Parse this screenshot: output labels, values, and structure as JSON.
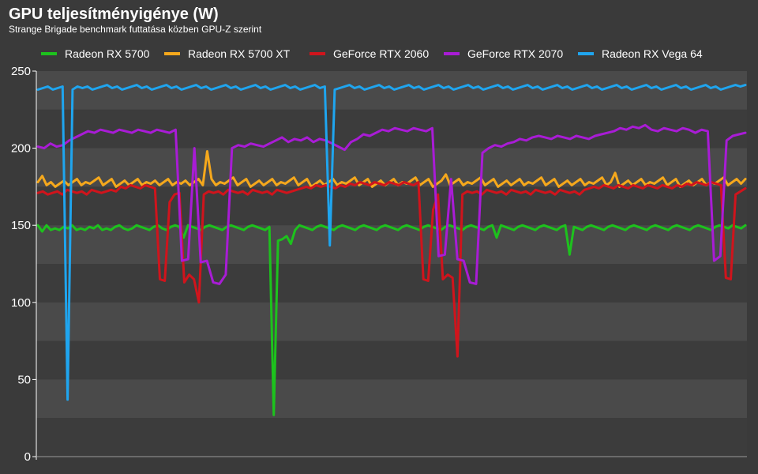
{
  "chart_data": {
    "type": "line",
    "title": "GPU teljesítményigénye (W)",
    "subtitle": "Strange Brigade benchmark futtatása közben GPU-Z szerint",
    "xlabel": "",
    "ylabel": "",
    "ylim": [
      0,
      250
    ],
    "yticks": [
      0,
      50,
      100,
      150,
      200,
      250
    ],
    "grid": true,
    "legend_position": "top",
    "colors": {
      "background": "#3a3a3a",
      "band_light": "#4a4a4a",
      "band_dark": "#3c3c3c",
      "axis": "#ffffff"
    },
    "series": [
      {
        "name": "Radeon RX 5700",
        "color": "#1dc21d",
        "values": [
          150,
          146,
          150,
          147,
          148,
          147,
          149,
          148,
          150,
          147,
          148,
          147,
          149,
          148,
          150,
          147,
          148,
          147,
          149,
          150,
          148,
          147,
          148,
          150,
          149,
          148,
          147,
          149,
          150,
          148,
          147,
          149,
          150,
          149,
          142,
          150,
          149,
          148,
          147,
          149,
          150,
          149,
          148,
          147,
          149,
          150,
          149,
          148,
          147,
          149,
          150,
          149,
          148,
          147,
          149,
          27,
          140,
          141,
          143,
          138,
          147,
          150,
          149,
          148,
          147,
          149,
          150,
          149,
          148,
          147,
          149,
          150,
          149,
          148,
          147,
          149,
          150,
          149,
          148,
          147,
          149,
          150,
          149,
          148,
          147,
          149,
          150,
          149,
          148,
          147,
          149,
          150,
          149,
          148,
          147,
          149,
          150,
          149,
          148,
          147,
          149,
          150,
          149,
          148,
          147,
          149,
          150,
          142,
          150,
          149,
          148,
          147,
          149,
          150,
          149,
          148,
          147,
          149,
          150,
          149,
          148,
          147,
          149,
          150,
          131,
          149,
          148,
          147,
          149,
          150,
          149,
          148,
          147,
          149,
          150,
          149,
          148,
          147,
          149,
          150,
          149,
          148,
          147,
          149,
          150,
          149,
          148,
          147,
          149,
          150,
          149,
          148,
          147,
          149,
          150,
          149,
          148,
          147,
          149,
          150,
          149,
          148,
          150,
          149,
          148,
          150
        ]
      },
      {
        "name": "Radeon RX 5700 XT",
        "color": "#f5a81c",
        "values": [
          178,
          182,
          176,
          178,
          175,
          177,
          179,
          176,
          178,
          180,
          176,
          178,
          177,
          179,
          181,
          176,
          178,
          180,
          175,
          177,
          179,
          176,
          178,
          180,
          176,
          178,
          177,
          179,
          176,
          178,
          180,
          176,
          178,
          177,
          179,
          176,
          178,
          180,
          176,
          198,
          180,
          176,
          178,
          177,
          179,
          181,
          176,
          178,
          180,
          175,
          177,
          179,
          176,
          178,
          180,
          176,
          178,
          177,
          179,
          181,
          176,
          178,
          180,
          175,
          177,
          179,
          176,
          178,
          180,
          176,
          178,
          177,
          179,
          181,
          176,
          178,
          180,
          175,
          177,
          179,
          176,
          178,
          180,
          176,
          178,
          177,
          179,
          181,
          176,
          178,
          180,
          175,
          177,
          179,
          183,
          176,
          178,
          180,
          176,
          178,
          177,
          179,
          181,
          176,
          178,
          180,
          175,
          177,
          179,
          176,
          178,
          180,
          176,
          178,
          177,
          179,
          181,
          176,
          178,
          180,
          175,
          177,
          179,
          176,
          178,
          180,
          176,
          178,
          177,
          179,
          181,
          176,
          178,
          184,
          175,
          177,
          179,
          176,
          178,
          180,
          176,
          178,
          177,
          179,
          181,
          176,
          178,
          180,
          175,
          177,
          179,
          176,
          178,
          180,
          176,
          178,
          177,
          179,
          181,
          176,
          178,
          180,
          177,
          180
        ]
      },
      {
        "name": "GeForce RTX 2060",
        "color": "#d0141c",
        "values": [
          171,
          172,
          170,
          171,
          172,
          170,
          173,
          172,
          171,
          172,
          170,
          173,
          172,
          171,
          172,
          173,
          172,
          175,
          174,
          176,
          175,
          174,
          176,
          175,
          174,
          115,
          114,
          165,
          170,
          171,
          113,
          118,
          115,
          100,
          170,
          172,
          171,
          172,
          170,
          173,
          172,
          171,
          172,
          170,
          173,
          172,
          171,
          172,
          170,
          173,
          172,
          171,
          172,
          173,
          174,
          175,
          174,
          176,
          175,
          176,
          175,
          174,
          176,
          175,
          177,
          176,
          178,
          177,
          176,
          178,
          177,
          176,
          178,
          177,
          176,
          178,
          177,
          176,
          178,
          115,
          114,
          160,
          170,
          115,
          118,
          116,
          65,
          170,
          172,
          171,
          172,
          170,
          173,
          172,
          171,
          172,
          170,
          173,
          172,
          171,
          172,
          170,
          173,
          172,
          171,
          172,
          170,
          173,
          172,
          171,
          172,
          170,
          173,
          174,
          175,
          174,
          176,
          175,
          174,
          176,
          175,
          174,
          176,
          175,
          174,
          176,
          175,
          174,
          176,
          175,
          174,
          176,
          175,
          177,
          176,
          178,
          177,
          176,
          178,
          177,
          176,
          116,
          115,
          170,
          172,
          174
        ]
      },
      {
        "name": "GeForce RTX 2070",
        "color": "#a91cd6",
        "values": [
          201,
          200,
          203,
          201,
          202,
          205,
          207,
          209,
          211,
          210,
          212,
          211,
          210,
          212,
          211,
          210,
          212,
          211,
          210,
          212,
          211,
          210,
          212,
          127,
          128,
          200,
          126,
          127,
          113,
          112,
          118,
          200,
          202,
          201,
          203,
          202,
          201,
          203,
          205,
          207,
          204,
          206,
          205,
          207,
          204,
          206,
          205,
          203,
          201,
          199,
          204,
          206,
          209,
          208,
          210,
          212,
          211,
          213,
          212,
          211,
          213,
          212,
          211,
          213,
          130,
          131,
          180,
          128,
          127,
          113,
          112,
          197,
          200,
          202,
          201,
          203,
          204,
          206,
          205,
          207,
          208,
          207,
          206,
          208,
          207,
          206,
          208,
          207,
          206,
          208,
          209,
          210,
          211,
          213,
          212,
          214,
          213,
          215,
          212,
          211,
          213,
          212,
          211,
          213,
          212,
          210,
          212,
          211,
          127,
          130,
          205,
          208,
          209,
          210
        ]
      },
      {
        "name": "Radeon RX Vega 64",
        "color": "#1fa5ef",
        "values": [
          238,
          239,
          240,
          238,
          239,
          240,
          37,
          238,
          240,
          239,
          240,
          238,
          239,
          240,
          241,
          239,
          240,
          238,
          239,
          240,
          241,
          239,
          240,
          238,
          239,
          240,
          241,
          239,
          240,
          238,
          239,
          240,
          241,
          239,
          240,
          238,
          239,
          240,
          241,
          239,
          240,
          238,
          239,
          240,
          241,
          239,
          240,
          238,
          239,
          240,
          241,
          239,
          240,
          238,
          239,
          240,
          241,
          239,
          240,
          137,
          238,
          239,
          240,
          241,
          239,
          240,
          238,
          239,
          240,
          241,
          239,
          240,
          238,
          239,
          240,
          241,
          239,
          240,
          238,
          239,
          240,
          241,
          239,
          240,
          238,
          239,
          240,
          241,
          239,
          240,
          238,
          239,
          240,
          241,
          239,
          240,
          238,
          239,
          240,
          241,
          239,
          240,
          238,
          239,
          240,
          241,
          239,
          240,
          238,
          239,
          240,
          241,
          239,
          240,
          238,
          239,
          240,
          241,
          239,
          240,
          238,
          239,
          240,
          241,
          239,
          240,
          238,
          239,
          240,
          241,
          239,
          240,
          238,
          239,
          240,
          241,
          239,
          240,
          238,
          239,
          240,
          241,
          240,
          241
        ]
      }
    ]
  }
}
